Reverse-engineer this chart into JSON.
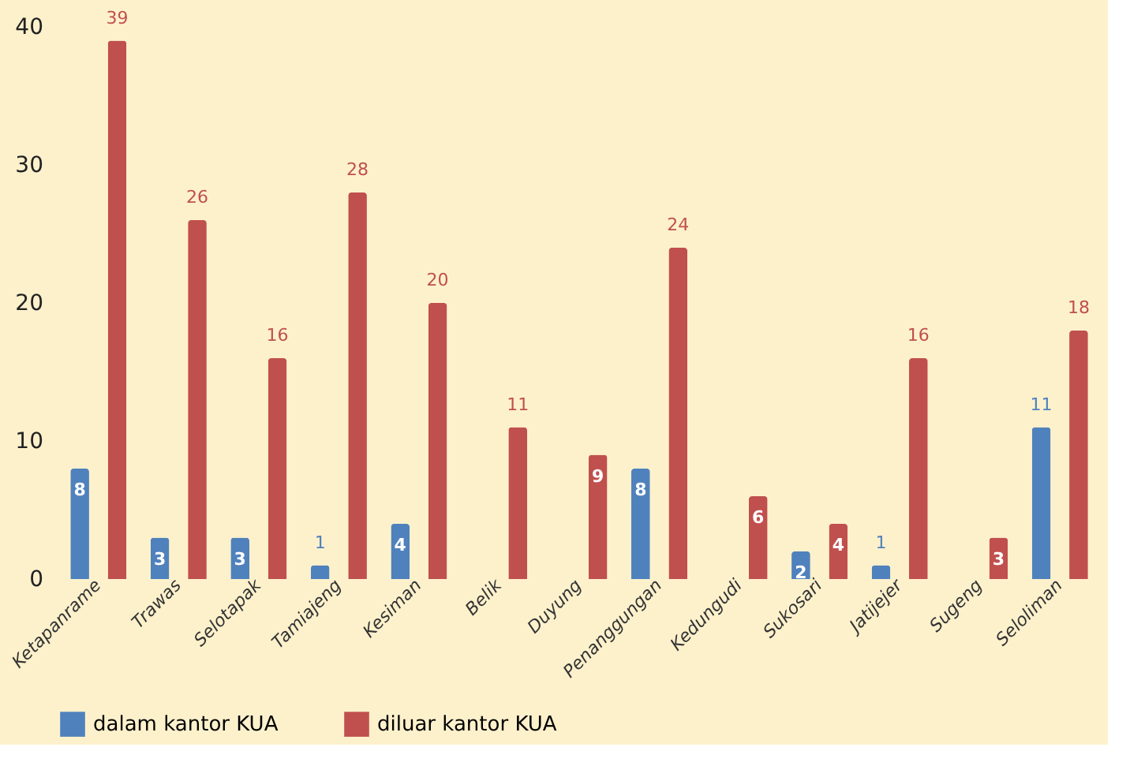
{
  "chart_data": {
    "type": "bar",
    "categories": [
      "Ketapanrame",
      "Trawas",
      "Selotapak",
      "Tamiajeng",
      "Kesiman",
      "Belik",
      "Duyung",
      "Penanggungan",
      "Kedungudi",
      "Sukosari",
      "Jatijejer",
      "Sugeng",
      "Seloliman"
    ],
    "series": [
      {
        "name": "dalam kantor KUA",
        "color": "#4f81bd",
        "values": [
          8,
          3,
          3,
          1,
          4,
          null,
          null,
          8,
          null,
          2,
          1,
          null,
          11
        ]
      },
      {
        "name": "diluar kantor KUA",
        "color": "#c0504d",
        "values": [
          39,
          26,
          16,
          28,
          20,
          11,
          9,
          24,
          6,
          4,
          16,
          3,
          18
        ]
      }
    ],
    "ylim": [
      0,
      40
    ],
    "yticks": [
      0,
      10,
      20,
      30,
      40
    ],
    "grid": false,
    "legend": "bottom",
    "data_labels": true
  }
}
